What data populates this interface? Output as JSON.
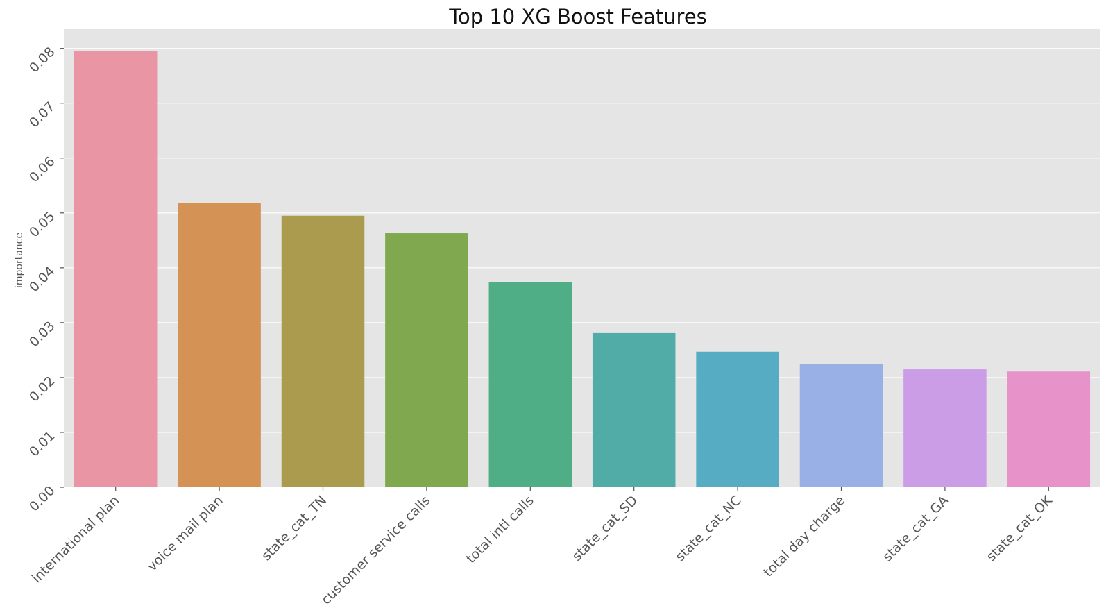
{
  "chart_data": {
    "type": "bar",
    "title": "Top 10 XG Boost Features",
    "xlabel": "",
    "ylabel": "importance",
    "ylim": [
      0,
      0.0835
    ],
    "yticks": [
      "0.00",
      "0.01",
      "0.02",
      "0.03",
      "0.04",
      "0.05",
      "0.06",
      "0.07",
      "0.08"
    ],
    "grid": true,
    "categories": [
      "international plan",
      "voice mail plan",
      "state_cat_TN",
      "customer service calls",
      "total intl calls",
      "state_cat_SD",
      "state_cat_NC",
      "total day charge",
      "state_cat_GA",
      "state_cat_OK"
    ],
    "values": [
      0.0795,
      0.0518,
      0.0495,
      0.0463,
      0.0374,
      0.0281,
      0.0247,
      0.0225,
      0.0215,
      0.0211
    ],
    "colors": [
      "#e995a4",
      "#d49354",
      "#ab9b4e",
      "#80a94f",
      "#50ae86",
      "#51aca8",
      "#55acc3",
      "#98b0e5",
      "#cc9de7",
      "#e793c9"
    ],
    "background": "#e5e5e5",
    "grid_color": "#ffffff"
  }
}
